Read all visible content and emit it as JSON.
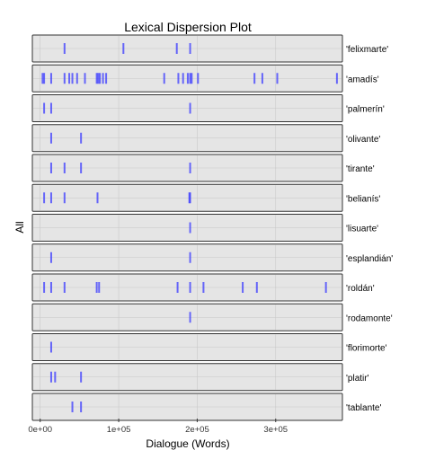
{
  "chart_data": {
    "type": "lexical-dispersion",
    "title": "Lexical Dispersion Plot",
    "xlabel": "Dialogue (Words)",
    "ylabel": "All",
    "xlim": [
      -10000,
      385000
    ],
    "x_ticks": [
      {
        "value": 0,
        "label": "0e+00"
      },
      {
        "value": 100000,
        "label": "1e+05"
      },
      {
        "value": 200000,
        "label": "2e+05"
      },
      {
        "value": 300000,
        "label": "3e+05"
      }
    ],
    "grid": true,
    "colors": {
      "panel_bg": "#e5e5e5",
      "panel_border": "#333333",
      "gridline": "#c8c8c8",
      "mark": "#3a3aff"
    },
    "series": [
      {
        "name": "'felixmarte'",
        "positions": [
          31000,
          106000,
          174000,
          191000
        ]
      },
      {
        "name": "'amadís'",
        "positions": [
          3000,
          5000,
          14000,
          31000,
          37000,
          41000,
          47000,
          57000,
          72000,
          74000,
          76000,
          80000,
          84000,
          158000,
          176000,
          182000,
          188000,
          191000,
          193000,
          201000,
          273000,
          283000,
          302000,
          378000
        ]
      },
      {
        "name": "'palmerín'",
        "positions": [
          5000,
          14000,
          191000
        ]
      },
      {
        "name": "'olivante'",
        "positions": [
          14000,
          52000
        ]
      },
      {
        "name": "'tirante'",
        "positions": [
          14000,
          31000,
          52000,
          191000
        ]
      },
      {
        "name": "'belianís'",
        "positions": [
          5000,
          14000,
          31000,
          73000,
          190000,
          191000
        ]
      },
      {
        "name": "'lisuarte'",
        "positions": [
          191000
        ]
      },
      {
        "name": "'esplandián'",
        "positions": [
          14000,
          191000
        ]
      },
      {
        "name": "'roldán'",
        "positions": [
          5000,
          14000,
          31000,
          72000,
          75000,
          175000,
          191000,
          208000,
          258000,
          276000,
          364000
        ]
      },
      {
        "name": "'rodamonte'",
        "positions": [
          191000
        ]
      },
      {
        "name": "'florimorte'",
        "positions": [
          14000
        ]
      },
      {
        "name": "'platir'",
        "positions": [
          14000,
          19000,
          52000
        ]
      },
      {
        "name": "'tablante'",
        "positions": [
          41000,
          52000
        ]
      }
    ]
  }
}
